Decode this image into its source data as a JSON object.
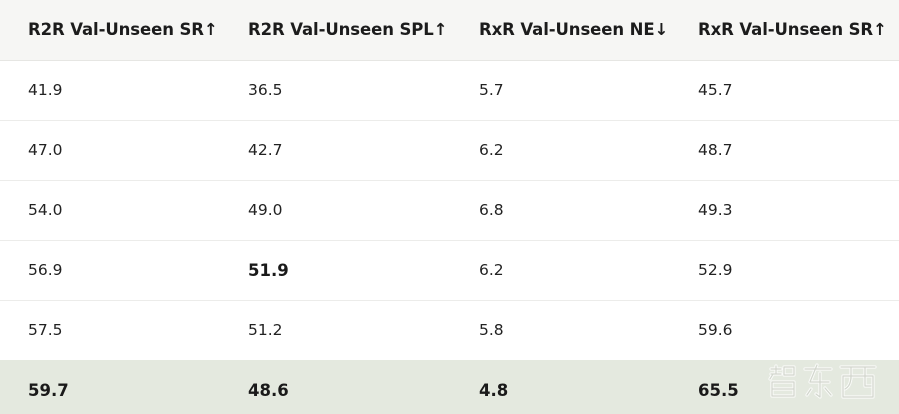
{
  "table": {
    "headers": [
      "R2R Val-Unseen SR↑",
      "R2R Val-Unseen SPL↑",
      "RxR Val-Unseen NE↓",
      "RxR Val-Unseen SR↑"
    ],
    "rows": [
      [
        "41.9",
        "36.5",
        "5.7",
        "45.7"
      ],
      [
        "47.0",
        "42.7",
        "6.2",
        "48.7"
      ],
      [
        "54.0",
        "49.0",
        "6.8",
        "49.3"
      ],
      [
        "56.9",
        "51.9",
        "6.2",
        "52.9"
      ],
      [
        "57.5",
        "51.2",
        "5.8",
        "59.6"
      ],
      [
        "59.7",
        "48.6",
        "4.8",
        "65.5"
      ]
    ]
  },
  "watermark": {
    "text": "智东西",
    "icon": "zhidx-logo-watermark"
  }
}
